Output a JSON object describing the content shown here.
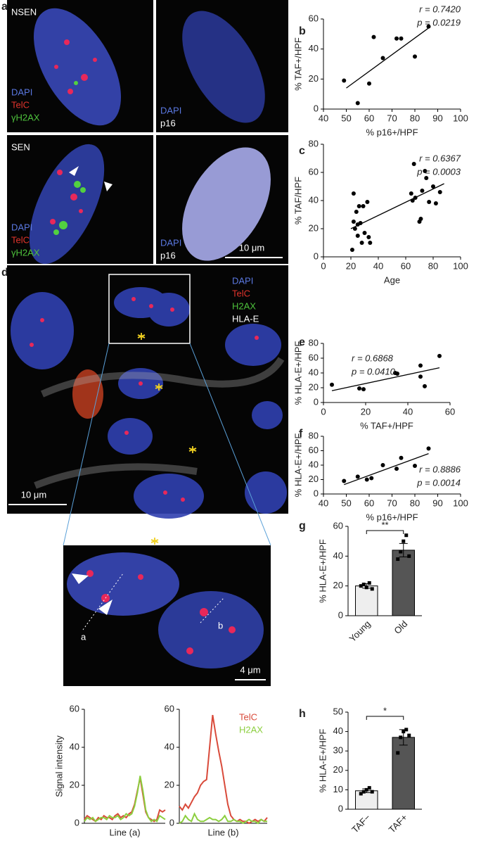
{
  "image_a": {
    "letter": "a",
    "top_left": {
      "title": "NSEN",
      "stains": [
        "DAPI",
        "TelC",
        "γH2AX"
      ]
    },
    "top_right": {
      "stains": [
        "DAPI",
        "p16"
      ]
    },
    "bottom_left": {
      "title": "SEN",
      "stains": [
        "DAPI",
        "TelC",
        "γH2AX"
      ]
    },
    "bottom_right": {
      "stains": [
        "DAPI",
        "p16"
      ]
    },
    "scale_bar": "10 μm"
  },
  "image_d": {
    "letter": "d",
    "stains": [
      "DAPI",
      "TelC",
      "H2AX",
      "HLA-E"
    ],
    "scale_bar": "10 μm",
    "inset": {
      "line_labels": [
        "a",
        "b"
      ],
      "scale_bar": "4 μm"
    }
  },
  "chart_data": [
    {
      "type": "scatter",
      "panel": "b",
      "x": [
        49,
        55,
        60,
        62,
        66,
        72,
        74,
        80,
        86
      ],
      "y": [
        19,
        4,
        17,
        48,
        34,
        47,
        47,
        35,
        55
      ],
      "xlim": [
        40,
        100
      ],
      "ylim": [
        0,
        60
      ],
      "xticks": [
        40,
        50,
        60,
        70,
        80,
        90,
        100
      ],
      "yticks": [
        0,
        20,
        40,
        60
      ],
      "xlabel": "% p16+/HPF",
      "ylabel": "% TAF+/HPF",
      "annotations": [
        "r = 0.7420",
        "p = 0.0219"
      ],
      "fit": {
        "x": [
          50,
          86
        ],
        "y": [
          14,
          54
        ]
      },
      "color": "#000000"
    },
    {
      "type": "scatter",
      "panel": "c",
      "x": [
        21,
        22,
        22,
        23,
        24,
        25,
        25,
        26,
        27,
        28,
        29,
        30,
        32,
        33,
        34,
        64,
        65,
        66,
        67,
        70,
        71,
        72,
        74,
        75,
        77,
        80,
        82,
        85
      ],
      "y": [
        5,
        25,
        45,
        20,
        32,
        23,
        15,
        36,
        24,
        10,
        36,
        17,
        39,
        14,
        10,
        45,
        40,
        66,
        42,
        25,
        27,
        47,
        61,
        56,
        39,
        50,
        38,
        46
      ],
      "xlim": [
        0,
        100
      ],
      "ylim": [
        0,
        80
      ],
      "xticks": [
        0,
        20,
        40,
        60,
        80,
        100
      ],
      "yticks": [
        0,
        20,
        40,
        60,
        80
      ],
      "xlabel": "Age",
      "ylabel": "% TAF/HPF",
      "annotations": [
        "r = 0.6367",
        "p = 0.0003"
      ],
      "fit": {
        "x": [
          20,
          88
        ],
        "y": [
          20,
          52
        ]
      },
      "color": "#000000"
    },
    {
      "type": "scatter",
      "panel": "e",
      "x": [
        4,
        17,
        19,
        34,
        35,
        46,
        46,
        48,
        55
      ],
      "y": [
        24,
        19,
        18,
        40,
        39,
        35,
        50,
        22,
        63
      ],
      "xlim": [
        0,
        60
      ],
      "ylim": [
        0,
        80
      ],
      "xticks": [
        0,
        20,
        40,
        60
      ],
      "yticks": [
        0,
        20,
        40,
        60,
        80
      ],
      "xlabel": "% TAF+/HPF",
      "ylabel": "% HLA-E+/HPF",
      "annotations": [
        "r = 0.6868",
        "p = 0.0410"
      ],
      "fit": {
        "x": [
          4,
          55
        ],
        "y": [
          16,
          47
        ]
      },
      "color": "#000000"
    },
    {
      "type": "scatter",
      "panel": "f",
      "x": [
        49,
        55,
        59,
        61,
        66,
        72,
        74,
        80,
        86
      ],
      "y": [
        18,
        24,
        20,
        22,
        40,
        35,
        50,
        39,
        63
      ],
      "xlim": [
        40,
        100
      ],
      "ylim": [
        0,
        80
      ],
      "xticks": [
        40,
        50,
        60,
        70,
        80,
        90,
        100
      ],
      "yticks": [
        0,
        20,
        40,
        60,
        80
      ],
      "xlabel": "% p16+/HPF",
      "ylabel": "% HLA-E+/HPF",
      "annotations": [
        "r = 0.8886",
        "p = 0.0014"
      ],
      "fit": {
        "x": [
          49,
          86
        ],
        "y": [
          13,
          56
        ]
      },
      "color": "#000000"
    },
    {
      "type": "bar",
      "panel": "g",
      "categories": [
        "Young",
        "Old"
      ],
      "values": [
        20,
        44
      ],
      "errors": [
        1.5,
        4.5
      ],
      "points": [
        [
          20,
          21,
          19,
          22,
          18
        ],
        [
          38,
          43,
          50,
          54,
          40
        ]
      ],
      "ylim": [
        0,
        60
      ],
      "yticks": [
        0,
        20,
        40,
        60
      ],
      "ylabel": "% HLA-E+/HPF",
      "colors": [
        "#eeeeee",
        "#555555"
      ],
      "annotation": "**"
    },
    {
      "type": "bar",
      "panel": "h",
      "categories": [
        "TAF−",
        "TAF+"
      ],
      "values": [
        9.5,
        37
      ],
      "errors": [
        1,
        4
      ],
      "points": [
        [
          8,
          9,
          10,
          11,
          9
        ],
        [
          29,
          37,
          40,
          41,
          38
        ]
      ],
      "ylim": [
        0,
        50
      ],
      "yticks": [
        0,
        10,
        20,
        30,
        40,
        50
      ],
      "ylabel": "% HLA-E+/HPF",
      "colors": [
        "#eeeeee",
        "#555555"
      ],
      "annotation": "*"
    },
    {
      "type": "line",
      "x": [
        0,
        1,
        2,
        3,
        4,
        5,
        6,
        7,
        8,
        9,
        10,
        11,
        12,
        13,
        14,
        15,
        16,
        17,
        18,
        19,
        20,
        21,
        22,
        23,
        24,
        25,
        26,
        27,
        28,
        29
      ],
      "xlim": [
        0,
        29
      ],
      "ylim": [
        0,
        60
      ],
      "yticks": [
        0,
        20,
        40,
        60
      ],
      "xlabel": "Line (a)",
      "ylabel": "Signal intensity",
      "series": [
        {
          "color": "#d94a3a",
          "values": [
            2,
            4,
            3,
            2,
            1,
            3,
            2,
            4,
            3,
            3,
            2,
            4,
            5,
            3,
            4,
            3,
            5,
            6,
            10,
            17,
            24,
            15,
            6,
            3,
            2,
            1,
            2,
            7,
            6,
            7
          ]
        },
        {
          "color": "#8ccf3f",
          "values": [
            1,
            3,
            2,
            3,
            1,
            2,
            3,
            3,
            2,
            4,
            3,
            3,
            4,
            2,
            3,
            5,
            4,
            5,
            9,
            16,
            25,
            17,
            7,
            3,
            1,
            2,
            1,
            4,
            3,
            2
          ]
        }
      ]
    },
    {
      "type": "line",
      "x": [
        0,
        1,
        2,
        3,
        4,
        5,
        6,
        7,
        8,
        9,
        10,
        11,
        12,
        13,
        14,
        15,
        16,
        17,
        18,
        19,
        20,
        21,
        22,
        23,
        24,
        25,
        26,
        27,
        28,
        29
      ],
      "xlim": [
        0,
        29
      ],
      "ylim": [
        0,
        60
      ],
      "yticks": [
        0,
        20,
        40,
        60
      ],
      "xlabel": "Line (b)",
      "legend": "top-right",
      "series": [
        {
          "name": "TelC",
          "color": "#d94a3a",
          "values": [
            9,
            7,
            10,
            8,
            11,
            14,
            16,
            20,
            22,
            23,
            40,
            57,
            47,
            38,
            30,
            20,
            10,
            4,
            2,
            1,
            2,
            1,
            1,
            0,
            1,
            2,
            1,
            2,
            1,
            3
          ]
        },
        {
          "name": "H2AX",
          "color": "#8ccf3f",
          "values": [
            0,
            1,
            4,
            2,
            1,
            5,
            2,
            1,
            1,
            2,
            3,
            2,
            2,
            1,
            2,
            4,
            1,
            1,
            2,
            1,
            1,
            0,
            1,
            2,
            1,
            1,
            0,
            2,
            1,
            1
          ]
        }
      ]
    }
  ]
}
